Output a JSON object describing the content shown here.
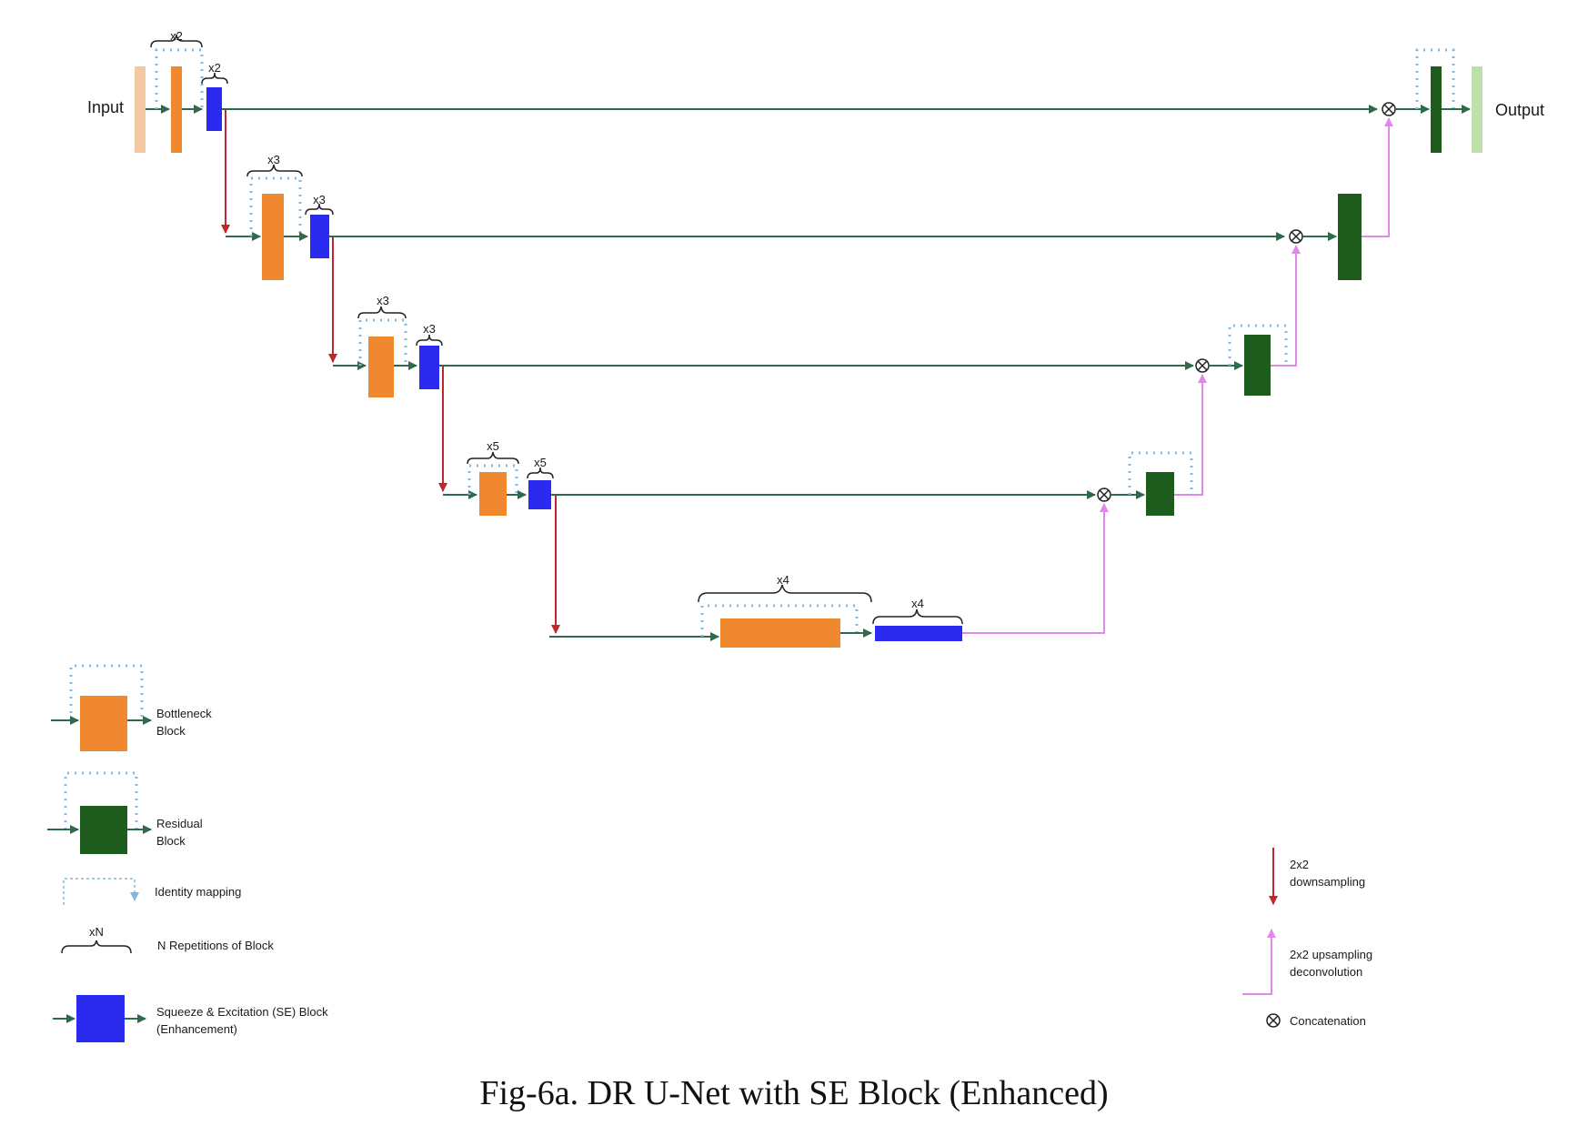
{
  "diagram": {
    "io": {
      "input": "Input",
      "output": "Output"
    },
    "reps": {
      "enc1_bottleneck": "x2",
      "enc1_se": "x2",
      "enc2_bottleneck": "x3",
      "enc2_se": "x3",
      "enc3_bottleneck": "x3",
      "enc3_se": "x3",
      "enc4_bottleneck": "x5",
      "enc4_se": "x5",
      "bridge_bottleneck": "x4",
      "bridge_se": "x4"
    },
    "legend": {
      "bottleneck": [
        "Bottleneck",
        "Block"
      ],
      "residual": [
        "Residual",
        "Block"
      ],
      "identity": "Identity mapping",
      "repeat_symbol": "xN",
      "repeat": "N Repetitions of Block",
      "se": [
        "Squeeze & Excitation (SE) Block",
        "(Enhancement)"
      ],
      "downsampling": [
        "2x2",
        "downsampling"
      ],
      "upsampling": [
        "2x2 upsampling",
        "deconvolution"
      ],
      "concat": "Concatenation"
    },
    "colors": {
      "bottleneck": "#f0882f",
      "se": "#2b2bf0",
      "residual": "#1e5c1e",
      "input": "#f2c9a2",
      "output": "#bfe0a8",
      "skip_arrow": "#2e6b4a",
      "downsample_arrow": "#c0272d",
      "upsample_arrow": "#e08ae8",
      "identity_dots": "#7fb8e0"
    }
  },
  "caption": "Fig-6a. DR U-Net with SE Block (Enhanced)"
}
